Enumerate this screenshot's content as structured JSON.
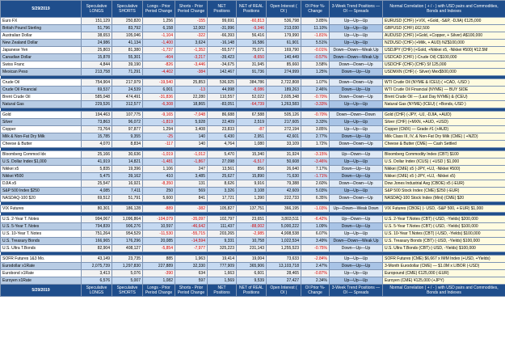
{
  "header": {
    "date": "5/29/2019",
    "cols": [
      "Speculative LONGS",
      "Speculative SHORTS",
      "Longs - Prior Period Change",
      "Shorts - Prior Period Change",
      "NET Positions",
      "NET of REAL Positions",
      "Open Interest ( OI )",
      "OI Prior %-Change",
      "3-Week Trend Positions — OI — Spreads",
      "Normal Correlation ( + / - ) with USD pairs and Commodities, Bonds and Indexes"
    ]
  },
  "groups": [
    [
      {
        "name": "Euro FX",
        "longs": "151,129",
        "shorts": "250,820",
        "lchg": "1,256",
        "schg": "-155",
        "net": "99,691",
        "real": "-60,813",
        "oi": "536,798",
        "oichg": "3.85%",
        "trend": "Up—Up—Up",
        "notes": "EURUSD (CHF) (+VIX, +Gold, -S&P, -DJIA) €125,000"
      },
      {
        "name": "British Pound Sterling",
        "longs": "51,796",
        "shorts": "83,792",
        "lchg": "6,158",
        "schg": "12,002",
        "net": "-31,996",
        "real": "-9,346",
        "oi": "213,030",
        "oichg": "11.10%",
        "trend": "Up—Up—Up",
        "notes": "GBPUSD (CHF) £62,500"
      },
      {
        "name": "Australian Dollar",
        "longs": "38,653",
        "shorts": "105,046",
        "lchg": "-1,104",
        "schg": "-322",
        "net": "-66,393",
        "real": "56,416",
        "oi": "179,990",
        "oichg": "-1.81%",
        "trend": "Up—Up—Up",
        "notes": "AUDUSD (CHF) (+Gold, +Copper, + Silver) A$100,000"
      },
      {
        "name": "New Zealand Dollar",
        "longs": "24,986",
        "shorts": "41,134",
        "lchg": "-1,400",
        "schg": "3,624",
        "net": "-16,148",
        "real": "16,586",
        "oi": "61,901",
        "oichg": "5.51%",
        "trend": "Up—Up—Up",
        "notes": "NZDUSD (CHF) (+Milk, + AUD) NZ$100,000"
      },
      {
        "name": "Japanese Yen",
        "longs": "25,803",
        "shorts": "81,380",
        "lchg": "-1,737",
        "schg": "-1,352",
        "net": "-55,577",
        "real": "75,071",
        "oi": "169,790",
        "oichg": "-0.01%",
        "trend": "Down—Down—Weak Up",
        "notes": "USDJPY (CHF) (+Gold, +Nikkei x5, -Nikkei ¥500) ¥12.5M"
      },
      {
        "name": "Canadian Dollar",
        "longs": "15,878",
        "shorts": "55,301",
        "lchg": "-404",
        "schg": "-3,217",
        "net": "-39,423",
        "real": "-8,650",
        "oi": "140,449",
        "oichg": "-0.57%",
        "trend": "Down—Down—Weak Up",
        "notes": "USDCAD (CHF) (-Crude Oil) C$100,000"
      },
      {
        "name": "Swiss Franc",
        "longs": "4,844",
        "shorts": "39,190",
        "lchg": "-826",
        "schg": "-3,446",
        "net": "-34,675",
        "real": "31,945",
        "oi": "85,660",
        "oichg": "3.58%",
        "trend": "Down—Down—Up",
        "notes": "USDCHF (CHF) (CHF) Sf 125,000"
      },
      {
        "name": "Mexican Peso",
        "longs": "213,758",
        "shorts": "71,291",
        "lchg": "-4,402",
        "schg": "-384",
        "net": "142,467",
        "real": "91,736",
        "oi": "274,999",
        "oichg": "1.25%",
        "trend": "Down—Up—Up",
        "notes": "USDMXN (CHF) (- Silver) Mex$500,000"
      }
    ],
    [
      {
        "name": "Crude Oil",
        "longs": "754,904",
        "shorts": "217,979",
        "lchg": "-19,540",
        "schg": "25,853",
        "net": "536,925",
        "real": "384,786",
        "oi": "2,722,808",
        "oichg": "1.07%",
        "trend": "Down—Down—Up",
        "notes": "WTI Crude Oil (NYME & ICEU) ( +CAD, -USD )"
      },
      {
        "name": "Crude Oil Financial",
        "longs": "69,537",
        "shorts": "24,539",
        "lchg": "6,001",
        "schg": "-13",
        "net": "44,998",
        "real": "-8,086",
        "oi": "189,263",
        "oichg": "2.46%",
        "trend": "Down—Up—Up",
        "notes": "WTI Crude Oil Financial (NYME) — BUY SIDE"
      },
      {
        "name": "Brent Crude Oil",
        "longs": "585,048",
        "shorts": "474,491",
        "lchg": "-31,836",
        "schg": "22,280",
        "net": "110,557",
        "real": "52,022",
        "oi": "2,605,348",
        "oichg": "-0.70%",
        "trend": "Down—Down—Up",
        "notes": "Brent Crude Oil — (Last Day NYME) & (ICEU)"
      },
      {
        "name": "Natural Gas",
        "longs": "229,526",
        "shorts": "312,577",
        "lchg": "-6,308",
        "schg": "18,865",
        "net": "-83,051",
        "real": "-64,739",
        "oi": "1,263,583",
        "oichg": "-3.33%",
        "trend": "Up—Up—Up",
        "notes": "Natural Gas (NYME) (ICEU) ( +Bonds,-USD )"
      }
    ],
    [
      {
        "name": "Gold",
        "longs": "194,463",
        "shorts": "107,775",
        "lchg": "-9,165",
        "schg": "-7,048",
        "net": "86,688",
        "real": "67,588",
        "oi": "505,126",
        "oichg": "-0.70%",
        "trend": "Down—Down—Down",
        "notes": "Gold (CHF) (-JPY, -UJ, -DJIA, +AUD)"
      },
      {
        "name": "Silver",
        "longs": "73,863",
        "shorts": "96,072",
        "lchg": "-1,819",
        "schg": "5,928",
        "net": "22,409",
        "real": "2,519",
        "oi": "217,605",
        "oichg": "3.33%",
        "trend": "Up—Up—Up",
        "notes": "Silver (CHF) (+MXN, +AUD, +USD)"
      },
      {
        "name": "Copper",
        "longs": "73,764",
        "shorts": "97,877",
        "lchg": "1,294",
        "schg": "3,408",
        "net": "23,833",
        "real": "-87",
        "oi": "272,194",
        "oichg": "3.85%",
        "trend": "Up—Up—Up",
        "notes": "Copper (CMX) — Grade #1 (+AUD)"
      },
      {
        "name": "Milk & Non-Fat Dry Milk",
        "longs": "15,785",
        "shorts": "9,355",
        "lchg": "-25",
        "schg": "140",
        "net": "6,430",
        "real": "2,951",
        "oi": "42,601",
        "oichg": "2.77%",
        "trend": "Down—Up—Up",
        "notes": "Milk Class III, IV, & Non-Fat Dry Milk (CME) ( +NZD)"
      },
      {
        "name": "Cheese & Butter",
        "longs": "4,070",
        "shorts": "8,834",
        "lchg": "-117",
        "schg": "140",
        "net": "4,764",
        "real": "1,080",
        "oi": "33,109",
        "oichg": "1.72%",
        "trend": "Down—Down—Up",
        "notes": "Cheese & Butter (CME) — Cash Settled"
      }
    ],
    [
      {
        "name": "Bloomberg Commod Idx",
        "longs": "25,166",
        "shorts": "30,636",
        "lchg": "-1,019",
        "schg": "-1,012",
        "net": "5,470",
        "real": "15,340",
        "oi": "31,924",
        "oichg": "-3.15%",
        "trend": "Up—Down—Up",
        "notes": "Bloomberg Commodity Index (CBT) $100"
      },
      {
        "name": "U.S. Dollar Index $1,000",
        "longs": "41,919",
        "shorts": "14,821",
        "lchg": "-1,481",
        "schg": "-1,867",
        "net": "27,098",
        "real": "-6,517",
        "oi": "50,608",
        "oichg": "-3.46%",
        "trend": "Up—Up—Up",
        "notes": "U.S. Dollar Index (ICUS) ( +USD ) $1,000"
      },
      {
        "name": "Nikkei x5",
        "longs": "5,835",
        "shorts": "19,396",
        "lchg": "1,106",
        "schg": "247",
        "net": "13,561",
        "real": "856",
        "oi": "26,640",
        "oichg": "7.17%",
        "trend": "Down—Up—Up",
        "notes": "Nikkei (CME) x5 (-JPY, +UJ, -Nikkei ¥500)"
      },
      {
        "name": "Nikkei ¥500",
        "longs": "5,475",
        "shorts": "39,162",
        "lchg": "410",
        "schg": "3,485",
        "net": "25,627",
        "real": "15,890",
        "oi": "71,630",
        "oichg": "-1.71%",
        "trend": "Down—Up—Up",
        "notes": "Nikkei (CME) x5 (-JPY, +UJ, -Nikkei x5)"
      },
      {
        "name": "DJIA x5",
        "longs": "25,547",
        "shorts": "16,921",
        "lchg": "-8,350",
        "schg": "131",
        "net": "8,626",
        "real": "9,916",
        "oi": "79,388",
        "oichg": "2.60%",
        "trend": "Down—Down—Up",
        "notes": "Dow Jones Industrial Avg (CBOE) x5 (-EUR)"
      },
      {
        "name": "S&P 500 Index $250",
        "longs": "4,085",
        "shorts": "7,411",
        "lchg": "250",
        "schg": "569",
        "net": "3,326",
        "real": "3,108",
        "oi": "42,609",
        "oichg": "5.03%",
        "trend": "Up—Up—Up",
        "notes": "S&P 500 Stock Index (CME) $250 (-EUR)"
      },
      {
        "name": "NASDAQ-100 $20",
        "longs": "69,512",
        "shorts": "51,791",
        "lchg": "5,600",
        "schg": "841",
        "net": "17,721",
        "real": "1,390",
        "oi": "222,733",
        "oichg": "6.35%",
        "trend": "Down—Down—Up",
        "notes": "NASDAQ-100 Stock Index (Mini) (CME) $20"
      }
    ],
    [
      {
        "name": "VIX Futures",
        "longs": "80,301",
        "shorts": "186,128",
        "lchg": "-889",
        "schg": "-382",
        "net": "105,827",
        "real": "137,751",
        "oi": "366,195",
        "oichg": "-1.03%",
        "trend": "Up—Down—Weak Down",
        "notes": "VIX Futures (CBOE) (- USD, -S&P 500, + EUR) $1,000"
      }
    ],
    [
      {
        "name": "U.S. 2-Year T. Notes",
        "longs": "994,067",
        "shorts": "1,096,864",
        "lchg": "-104,079",
        "schg": "-35,097",
        "net": "102,797",
        "real": "23,651",
        "oi": "3,803,511",
        "oichg": "-6.42%",
        "trend": "Up—Down—Up",
        "notes": "U.S. 2-Year T.Notes (CBT) (-USD, -Yields) $200,000"
      },
      {
        "name": "U.S. 5-Year T. Notes",
        "longs": "794,839",
        "shorts": "906,276",
        "lchg": "10,597",
        "schg": "-46,642",
        "real": "-88,002",
        "net": "111,437",
        "oi": "5,000,222",
        "oichg": "1.09%",
        "trend": "Down—Up—Up",
        "notes": "U.S. 5-Year T.Notes (CBT) (-USD, -Yields) $100,000"
      },
      {
        "name": "U.S. 10-Year T. Notes",
        "longs": "751,264",
        "shorts": "954,529",
        "lchg": "-11,530",
        "schg": "-55,715",
        "net": "203,265",
        "real": "-2,985",
        "oi": "4,908,538",
        "oichg": "6.07%",
        "trend": "Up—Up—Up",
        "notes": "U.S. 10-Year T.Notes (CBT) (-USD, -Yields) $100,000"
      },
      {
        "name": "U.S. Treasury Bonds",
        "longs": "166,965",
        "shorts": "176,296",
        "lchg": "20,085",
        "schg": "-14,594",
        "net": "9,331",
        "real": "10,758",
        "oi": "1,022,534",
        "oichg": "3.49%",
        "trend": "Down—Down—Weak Up",
        "notes": "U.S. Treasury Bonds (CBT) (-USD, -Yields) $100,000"
      },
      {
        "name": "U.S. Ultra T.Bonds",
        "longs": "82,904",
        "shorts": "408,127",
        "lchg": "-5,854",
        "schg": "-7,977",
        "net": "325,223",
        "real": "231,143",
        "oi": "1,255,523",
        "oichg": "-0.75%",
        "trend": "Down—Up—Up",
        "notes": "U.S. Ultra T.Bonds (CBT) (-USD, -Yields) $100,000"
      }
    ],
    [
      {
        "name": "SOFR Futures 1&3 Mo.",
        "longs": "43,149",
        "shorts": "23,735",
        "lchg": "885",
        "schg": "1,963",
        "net": "19,414",
        "real": "19,004",
        "oi": "73,633",
        "oichg": "-2.84%",
        "trend": "Up—Up—Up",
        "notes": "SOFR Futures (CME) $6,667 x IMM Index (+USD, +Yields)"
      },
      {
        "name": "Eurodollar x1Rate",
        "longs": "2,075,739",
        "shorts": "1,297,830",
        "lchg": "227,889",
        "schg": "32,330",
        "net": "777,909",
        "real": "365,906",
        "oi": "13,103,718",
        "oichg": "2.47%",
        "trend": "Down—Up—Up",
        "notes": "3-Month Eurodollar (CME) — $1.0M x LIBOR (-USD)"
      },
      {
        "name": "Eurobond x1Rate",
        "longs": "3,413",
        "shorts": "5,076",
        "lchg": "-390",
        "schg": "634",
        "net": "1,663",
        "real": "6,601",
        "oi": "28,465",
        "oichg": "-0.87%",
        "trend": "Up—Up—Up",
        "notes": "Europound (CME) €125,000 (-EUR)"
      },
      {
        "name": "Euroyen x1Rate",
        "longs": "6,576",
        "shorts": "5,007",
        "lchg": "1,082",
        "schg": "597",
        "net": "1,569",
        "real": "9,539",
        "oi": "27,427",
        "oichg": "2.34%",
        "trend": "Up—Up—Up",
        "notes": "Euroyen (CME) ¥125,000 (+JPY)"
      }
    ]
  ]
}
